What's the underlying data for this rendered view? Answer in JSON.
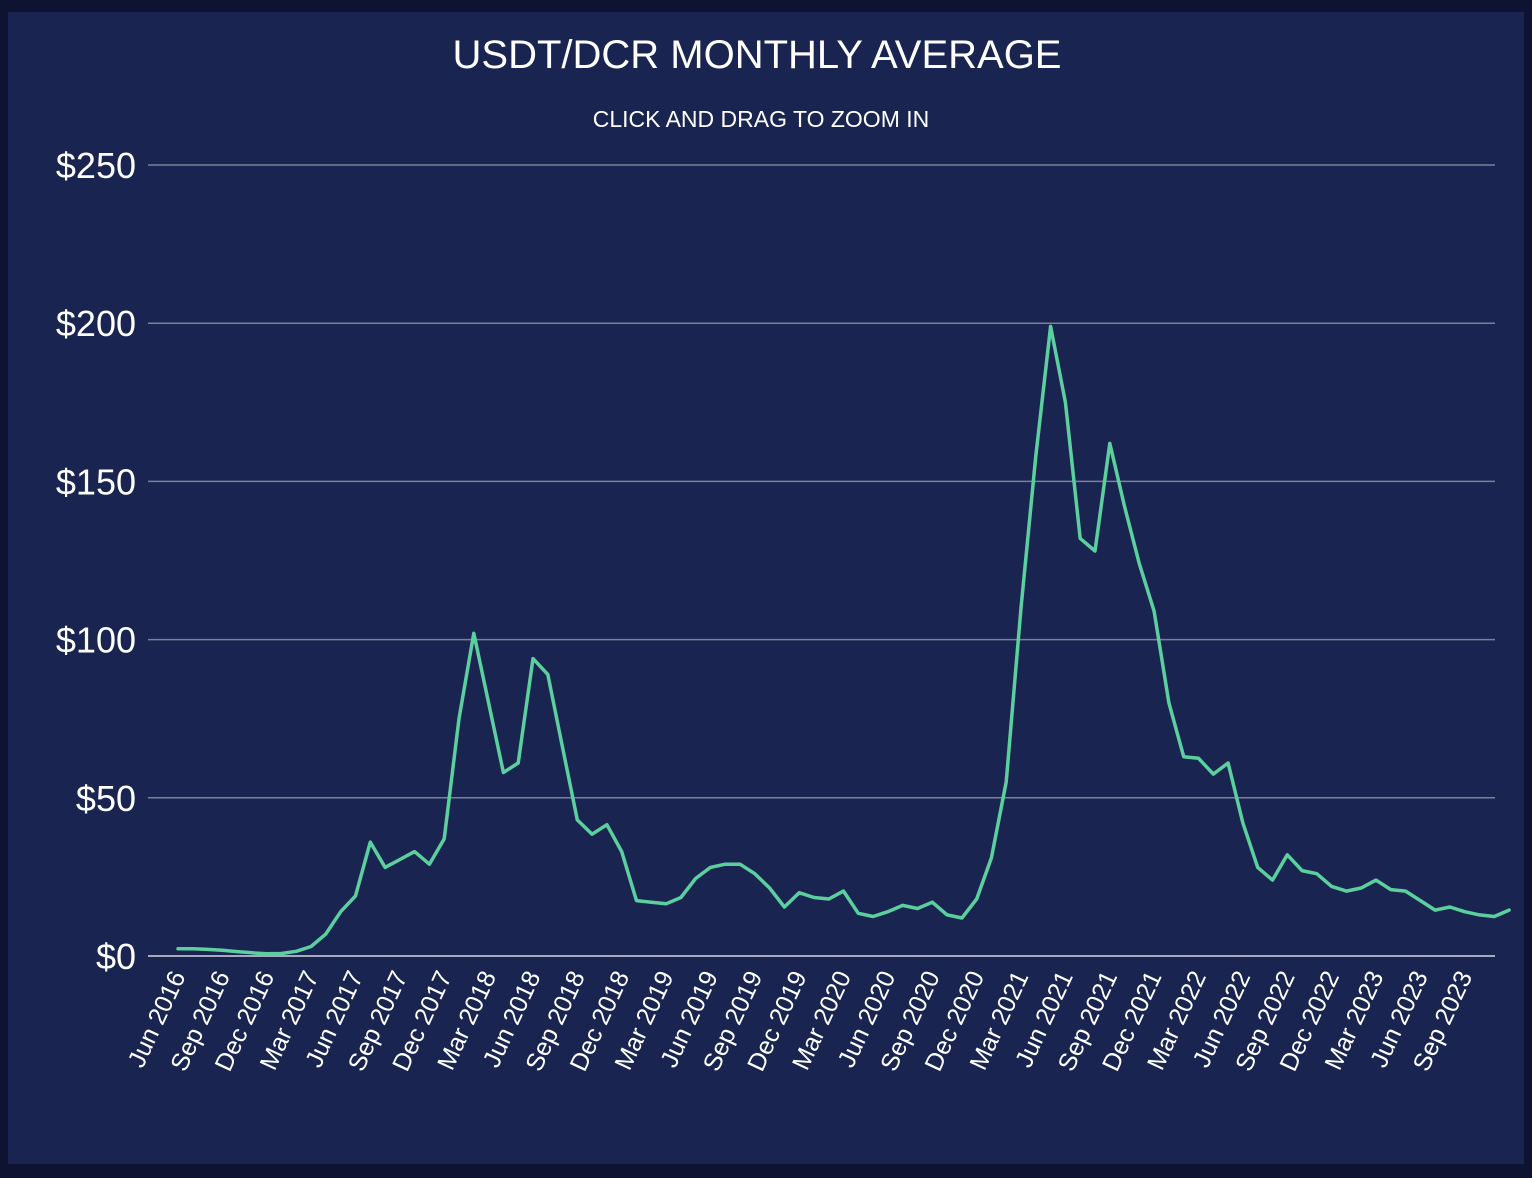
{
  "chart_data": {
    "type": "line",
    "title": "USDT/DCR MONTHLY AVERAGE",
    "subtitle": "CLICK AND DRAG TO ZOOM IN",
    "xlabel": "",
    "ylabel": "",
    "ylim": [
      0,
      250
    ],
    "yticks": [
      0,
      50,
      100,
      150,
      200,
      250
    ],
    "ytick_labels": [
      "$0",
      "$50",
      "$100",
      "$150",
      "$200",
      "$250"
    ],
    "grid": true,
    "legend": "none",
    "x_start": "Jun 2016",
    "xtick_labels": [
      "Jun 2016",
      "Sep 2016",
      "Dec 2016",
      "Mar 2017",
      "Jun 2017",
      "Sep 2017",
      "Dec 2017",
      "Mar 2018",
      "Jun 2018",
      "Sep 2018",
      "Dec 2018",
      "Mar 2019",
      "Jun 2019",
      "Sep 2019",
      "Dec 2019",
      "Mar 2020",
      "Jun 2020",
      "Sep 2020",
      "Dec 2020",
      "Mar 2021",
      "Jun 2021",
      "Sep 2021",
      "Dec 2021",
      "Mar 2022",
      "Jun 2022",
      "Sep 2022",
      "Dec 2022",
      "Mar 2023",
      "Jun 2023",
      "Sep 2023"
    ],
    "series": [
      {
        "name": "USDT/DCR",
        "color": "#5ccf9e",
        "values": [
          2.3,
          2.3,
          2.1,
          1.8,
          1.4,
          1.0,
          0.7,
          0.8,
          1.5,
          3.0,
          7.0,
          14.0,
          19.0,
          36.0,
          28.0,
          30.5,
          33.0,
          29.0,
          37.0,
          75.0,
          102.0,
          80.0,
          58.0,
          61.0,
          94.0,
          89.0,
          66.0,
          43.0,
          38.5,
          41.5,
          33.0,
          17.5,
          17.0,
          16.5,
          18.5,
          24.5,
          28.0,
          29.0,
          29.0,
          26.0,
          21.5,
          15.5,
          20.0,
          18.5,
          18.0,
          20.5,
          13.5,
          12.5,
          14.0,
          16.0,
          15.0,
          17.0,
          13.0,
          12.0,
          18.0,
          31.0,
          55.0,
          110.0,
          158.0,
          199.0,
          175.0,
          132.0,
          128.0,
          162.0,
          142.0,
          124.0,
          109.0,
          80.0,
          63.0,
          62.5,
          57.5,
          61.0,
          42.0,
          28.0,
          24.0,
          32.0,
          27.0,
          26.0,
          22.0,
          20.5,
          21.5,
          24.0,
          21.0,
          20.5,
          17.5,
          14.5,
          15.5,
          14.0,
          13.0,
          12.5,
          14.5
        ]
      }
    ]
  }
}
